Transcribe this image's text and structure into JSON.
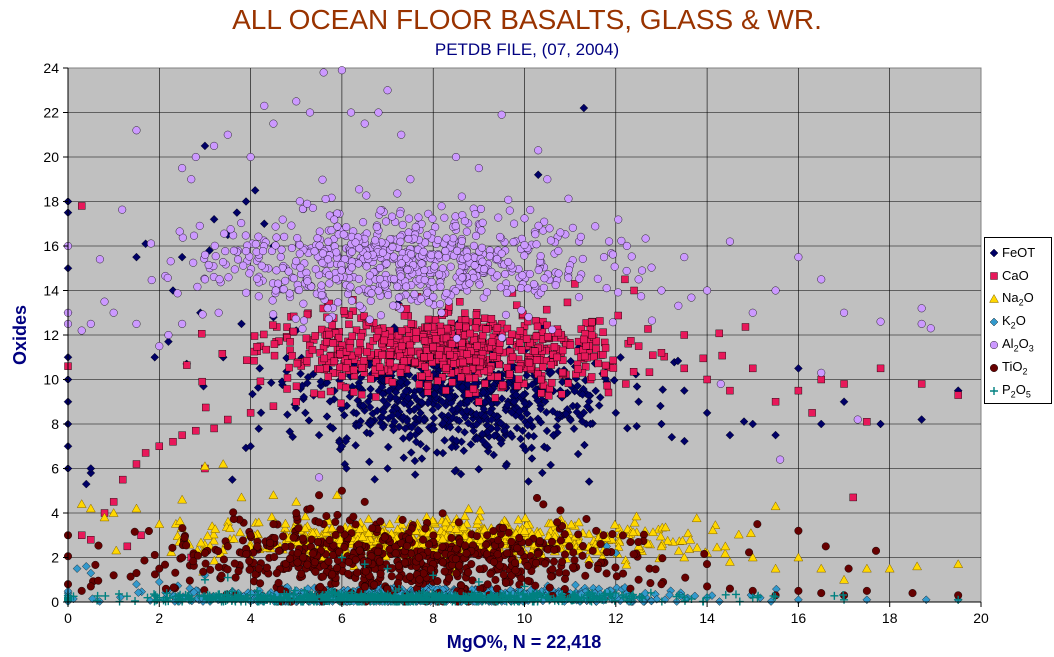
{
  "chart_data": {
    "type": "scatter",
    "title": "ALL OCEAN FLOOR BASALTS, GLASS & WR.",
    "subtitle": "PETDB FILE,  (07, 2004)",
    "xlabel": "MgO%,  N = 22,418",
    "ylabel": "Oxides",
    "xlim": [
      0,
      20
    ],
    "ylim": [
      0,
      24
    ],
    "xticks": [
      "0",
      "2",
      "4",
      "6",
      "8",
      "10",
      "12",
      "14",
      "16",
      "18",
      "20"
    ],
    "yticks": [
      "0",
      "2",
      "4",
      "6",
      "8",
      "10",
      "12",
      "14",
      "16",
      "18",
      "20",
      "22",
      "24"
    ],
    "grid": true,
    "plot_background": "#C0C0C0",
    "legend_position": "right",
    "series": [
      {
        "key": "feot",
        "name": "FeOT",
        "label_html": "FeOT",
        "marker": "diamond",
        "color": "#000066",
        "cluster": {
          "x_mean": 8.5,
          "x_sd": 1.8,
          "y_mean": 9.0,
          "y_sd": 1.2
        },
        "outliers": [
          [
            0,
            18
          ],
          [
            0,
            17.5
          ],
          [
            0,
            16
          ],
          [
            0,
            15
          ],
          [
            0,
            13
          ],
          [
            0,
            11
          ],
          [
            0,
            10
          ],
          [
            0,
            9
          ],
          [
            0,
            8
          ],
          [
            0,
            7
          ],
          [
            0,
            6
          ],
          [
            0.5,
            5.8
          ],
          [
            0.4,
            5.3
          ],
          [
            0.5,
            6.0
          ],
          [
            1.5,
            15.5
          ],
          [
            1.7,
            16.1
          ],
          [
            2.3,
            14.0
          ],
          [
            2.5,
            15.5
          ],
          [
            2.6,
            10.7
          ],
          [
            3.0,
            20.5
          ],
          [
            3.2,
            17.2
          ],
          [
            3.5,
            16.5
          ],
          [
            3.7,
            17.5
          ],
          [
            3.9,
            18.0
          ],
          [
            4.1,
            18.5
          ],
          [
            4.3,
            17.0
          ],
          [
            4.5,
            16.0
          ],
          [
            3.1,
            15.8
          ],
          [
            2.9,
            13.0
          ],
          [
            3.4,
            11.0
          ],
          [
            3.8,
            12.5
          ],
          [
            4.2,
            10.5
          ],
          [
            4.5,
            12.8
          ],
          [
            5.0,
            12.2
          ],
          [
            5.5,
            7.5
          ],
          [
            6.0,
            7.0
          ],
          [
            6.6,
            6.3
          ],
          [
            7.0,
            6.0
          ],
          [
            7.5,
            7.5
          ],
          [
            12.0,
            8.5
          ],
          [
            12.5,
            9.0
          ],
          [
            13.0,
            8.0
          ],
          [
            13.5,
            9.5
          ],
          [
            14.0,
            8.5
          ],
          [
            14.5,
            7.5
          ],
          [
            15.0,
            8.0
          ],
          [
            15.5,
            7.5
          ],
          [
            16.0,
            10.5
          ],
          [
            16.5,
            8.0
          ],
          [
            17.0,
            9.0
          ],
          [
            17.8,
            8.0
          ],
          [
            18.7,
            8.2
          ],
          [
            19.5,
            9.5
          ],
          [
            11.3,
            22.2
          ],
          [
            10.3,
            19.2
          ],
          [
            3.6,
            5.5
          ],
          [
            4.0,
            7.0
          ],
          [
            5.2,
            8.5
          ],
          [
            2.2,
            11.7
          ],
          [
            1.9,
            11.0
          ]
        ]
      },
      {
        "key": "cao",
        "name": "CaO",
        "label_html": "CaO",
        "marker": "square",
        "color": "#E8185A",
        "cluster": {
          "x_mean": 8.2,
          "x_sd": 2.0,
          "y_mean": 11.3,
          "y_sd": 0.9
        },
        "outliers": [
          [
            0,
            10.6
          ],
          [
            0.3,
            3.0
          ],
          [
            0.5,
            2.8
          ],
          [
            0.8,
            4.0
          ],
          [
            1.0,
            4.5
          ],
          [
            1.2,
            5.5
          ],
          [
            1.5,
            6.2
          ],
          [
            1.7,
            6.7
          ],
          [
            2.0,
            7.0
          ],
          [
            2.3,
            7.2
          ],
          [
            2.5,
            7.5
          ],
          [
            2.8,
            7.7
          ],
          [
            3.0,
            6.0
          ],
          [
            3.2,
            7.8
          ],
          [
            3.5,
            8.2
          ],
          [
            4.0,
            8.5
          ],
          [
            4.5,
            8.8
          ],
          [
            5.0,
            9.0
          ],
          [
            0.3,
            17.8
          ],
          [
            12.5,
            11.5
          ],
          [
            13.0,
            11.2
          ],
          [
            13.5,
            10.5
          ],
          [
            14.0,
            10.0
          ],
          [
            14.5,
            9.5
          ],
          [
            15.0,
            10.5
          ],
          [
            15.5,
            9.0
          ],
          [
            16.0,
            9.5
          ],
          [
            16.5,
            10.0
          ],
          [
            17.0,
            9.8
          ],
          [
            17.5,
            8.1
          ],
          [
            17.8,
            10.5
          ],
          [
            18.7,
            9.8
          ],
          [
            19.5,
            9.3
          ],
          [
            12.2,
            14.5
          ],
          [
            12.4,
            14.0
          ],
          [
            13.5,
            12.0
          ],
          [
            16.3,
            8.5
          ],
          [
            17.2,
            4.7
          ],
          [
            11.3,
            11.8
          ],
          [
            2.7,
            2.0
          ],
          [
            1.3,
            2.5
          ],
          [
            1.6,
            3.0
          ]
        ]
      },
      {
        "key": "na2o",
        "name": "Na2O",
        "label_html": "Na<sub>2</sub>O",
        "marker": "triangle",
        "color": "#FFD700",
        "cluster": {
          "x_mean": 8.0,
          "x_sd": 2.5,
          "y_mean": 2.8,
          "y_sd": 0.45
        },
        "outliers": [
          [
            0.3,
            4.4
          ],
          [
            0.5,
            4.2
          ],
          [
            0.8,
            3.8
          ],
          [
            1.0,
            4.0
          ],
          [
            1.5,
            4.2
          ],
          [
            2.0,
            3.5
          ],
          [
            2.5,
            4.6
          ],
          [
            3.0,
            6.1
          ],
          [
            3.4,
            6.2
          ],
          [
            3.8,
            4.7
          ],
          [
            4.5,
            4.8
          ],
          [
            5.0,
            4.5
          ],
          [
            9.5,
            3.5
          ],
          [
            10.0,
            3.2
          ],
          [
            12.5,
            2.5
          ],
          [
            13.0,
            2.5
          ],
          [
            13.5,
            2.0
          ],
          [
            14.0,
            2.2
          ],
          [
            14.5,
            1.8
          ],
          [
            15.0,
            2.0
          ],
          [
            15.5,
            1.5
          ],
          [
            16.0,
            2.0
          ],
          [
            16.5,
            1.5
          ],
          [
            17.0,
            1.0
          ],
          [
            17.5,
            1.5
          ],
          [
            18.0,
            1.5
          ],
          [
            18.6,
            1.6
          ],
          [
            19.5,
            1.7
          ],
          [
            15.5,
            4.3
          ],
          [
            14.4,
            2.5
          ]
        ]
      },
      {
        "key": "k2o",
        "name": "K2O",
        "label_html": "K<sub>2</sub>O",
        "marker": "diamond",
        "color": "#3399CC",
        "cluster": {
          "x_mean": 7.5,
          "x_sd": 2.7,
          "y_mean": 0.25,
          "y_sd": 0.2
        },
        "outliers": [
          [
            0.2,
            1.5
          ],
          [
            0.4,
            1.6
          ],
          [
            0.5,
            1.3
          ],
          [
            1.5,
            0.8
          ],
          [
            2.0,
            0.9
          ],
          [
            3.0,
            1.2
          ],
          [
            4.0,
            1.5
          ],
          [
            5.0,
            1.8
          ],
          [
            12.0,
            0.3
          ],
          [
            14.0,
            0.2
          ],
          [
            16.0,
            0.1
          ],
          [
            17.5,
            0.1
          ],
          [
            18.8,
            0.1
          ],
          [
            19.5,
            0.1
          ],
          [
            11.8,
            2.5
          ],
          [
            12.0,
            2.2
          ]
        ]
      },
      {
        "key": "al2o3",
        "name": "Al2O3",
        "label_html": "Al<sub>2</sub>O<sub>3</sub>",
        "marker": "circle",
        "color": "#CC99FF",
        "cluster": {
          "x_mean": 7.3,
          "x_sd": 2.2,
          "y_mean": 15.3,
          "y_sd": 1.2
        },
        "outliers": [
          [
            0,
            16
          ],
          [
            0,
            13
          ],
          [
            0,
            12.5
          ],
          [
            0.3,
            12.2
          ],
          [
            0.5,
            12.5
          ],
          [
            0.8,
            13.5
          ],
          [
            1.0,
            13.0
          ],
          [
            1.5,
            21.2
          ],
          [
            1.5,
            12.5
          ],
          [
            2.0,
            11.5
          ],
          [
            2.2,
            12.0
          ],
          [
            2.5,
            12.5
          ],
          [
            2.7,
            19.0
          ],
          [
            2.5,
            19.5
          ],
          [
            2.8,
            20.0
          ],
          [
            3.2,
            20.5
          ],
          [
            3.5,
            21.0
          ],
          [
            4.0,
            20.0
          ],
          [
            4.3,
            22.3
          ],
          [
            4.5,
            21.5
          ],
          [
            5.0,
            22.5
          ],
          [
            5.3,
            22.0
          ],
          [
            5.6,
            23.8
          ],
          [
            6.0,
            23.9
          ],
          [
            6.2,
            22.0
          ],
          [
            6.5,
            21.5
          ],
          [
            6.8,
            22.0
          ],
          [
            7.0,
            23.0
          ],
          [
            7.3,
            21.0
          ],
          [
            7.5,
            19.0
          ],
          [
            8.5,
            20.0
          ],
          [
            9.0,
            19.5
          ],
          [
            9.5,
            21.9
          ],
          [
            10.3,
            20.3
          ],
          [
            10.5,
            19.0
          ],
          [
            12.5,
            14.5
          ],
          [
            13.0,
            14.0
          ],
          [
            13.5,
            15.5
          ],
          [
            14.0,
            14.0
          ],
          [
            14.5,
            16.2
          ],
          [
            15.0,
            13.0
          ],
          [
            15.5,
            14.0
          ],
          [
            16.0,
            15.5
          ],
          [
            16.5,
            14.5
          ],
          [
            17.0,
            13.0
          ],
          [
            17.3,
            8.2
          ],
          [
            17.8,
            12.6
          ],
          [
            18.7,
            12.5
          ],
          [
            18.7,
            13.2
          ],
          [
            18.9,
            12.3
          ],
          [
            14.3,
            9.8
          ],
          [
            15.6,
            6.4
          ],
          [
            16.5,
            10.3
          ],
          [
            5.5,
            5.6
          ],
          [
            3.0,
            14.5
          ],
          [
            3.3,
            13.0
          ]
        ]
      },
      {
        "key": "tio2",
        "name": "TiO2",
        "label_html": "TiO<sub>2</sub>",
        "marker": "circle",
        "color": "#660000",
        "cluster": {
          "x_mean": 7.2,
          "x_sd": 2.4,
          "y_mean": 1.9,
          "y_sd": 0.85
        },
        "outliers": [
          [
            0,
            0.8
          ],
          [
            0.3,
            0.5
          ],
          [
            0.5,
            0.7
          ],
          [
            1.0,
            1.2
          ],
          [
            1.5,
            1.3
          ],
          [
            2.0,
            1.5
          ],
          [
            2.5,
            2.0
          ],
          [
            3.0,
            2.2
          ],
          [
            3.5,
            2.5
          ],
          [
            4.0,
            3.0
          ],
          [
            4.5,
            3.5
          ],
          [
            5.0,
            4.0
          ],
          [
            5.5,
            4.8
          ],
          [
            6.0,
            5.0
          ],
          [
            6.5,
            4.5
          ],
          [
            12.5,
            1.0
          ],
          [
            13.0,
            0.8
          ],
          [
            14.0,
            0.7
          ],
          [
            14.5,
            0.6
          ],
          [
            15.0,
            0.5
          ],
          [
            15.5,
            0.3
          ],
          [
            16.0,
            0.5
          ],
          [
            16.5,
            0.4
          ],
          [
            17.0,
            0.3
          ],
          [
            17.5,
            0.5
          ],
          [
            17.7,
            2.3
          ],
          [
            18.5,
            0.4
          ],
          [
            19.5,
            0.3
          ],
          [
            15.1,
            3.5
          ],
          [
            16.0,
            3.2
          ],
          [
            16.6,
            2.5
          ],
          [
            17.1,
            1.5
          ]
        ]
      },
      {
        "key": "p2o5",
        "name": "P2O5",
        "label_html": "P<sub>2</sub>O<sub>5</sub>",
        "marker": "plus",
        "color": "#008080",
        "cluster": {
          "x_mean": 7.2,
          "x_sd": 2.8,
          "y_mean": 0.18,
          "y_sd": 0.12
        },
        "outliers": [
          [
            3.0,
            1.0
          ],
          [
            3.5,
            1.1
          ],
          [
            6.0,
            2.0
          ],
          [
            6.5,
            1.7
          ],
          [
            7.0,
            1.5
          ],
          [
            8.0,
            1.2
          ],
          [
            9.0,
            0.9
          ],
          [
            10.0,
            0.7
          ],
          [
            12.0,
            0.4
          ],
          [
            14.0,
            0.2
          ],
          [
            15.0,
            0.2
          ],
          [
            17.0,
            0.1
          ],
          [
            19.5,
            0.1
          ]
        ]
      }
    ]
  }
}
